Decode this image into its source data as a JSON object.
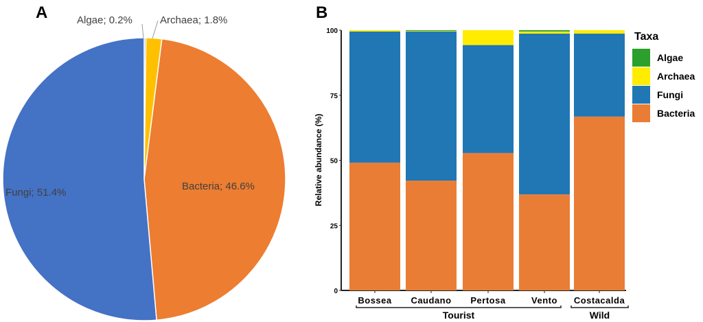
{
  "chart_data": [
    {
      "type": "pie",
      "panel_label": "A",
      "slices": [
        {
          "label": "Algae; 0.2%",
          "name": "Algae",
          "value": 0.2,
          "color": "#A5A5A5"
        },
        {
          "label": "Archaea; 1.8%",
          "name": "Archaea",
          "value": 1.8,
          "color": "#FFC000"
        },
        {
          "label": "Bacteria; 46.6%",
          "name": "Bacteria",
          "value": 46.6,
          "color": "#ED7D31"
        },
        {
          "label": "Fungi; 51.4%",
          "name": "Fungi",
          "value": 51.4,
          "color": "#4472C4"
        }
      ]
    },
    {
      "type": "bar",
      "stacked": true,
      "panel_label": "B",
      "categories": [
        "Bossea",
        "Caudano",
        "Pertosa",
        "Vento",
        "Costacalda"
      ],
      "groups": [
        {
          "label": "Tourist",
          "members": [
            "Bossea",
            "Caudano",
            "Pertosa",
            "Vento"
          ]
        },
        {
          "label": "Wild",
          "members": [
            "Costacalda"
          ]
        }
      ],
      "ylabel": "Relative abundance (%)",
      "xlabel": "",
      "ylim": [
        0,
        100
      ],
      "yticks": [
        "0",
        "25",
        "50",
        "75",
        "100"
      ],
      "legend": {
        "title": "Taxa",
        "position": "right"
      },
      "series": [
        {
          "name": "Bacteria",
          "color": "#E97D35",
          "values": [
            49.1,
            42.2,
            52.8,
            36.9,
            66.8
          ]
        },
        {
          "name": "Fungi",
          "color": "#2077B4",
          "values": [
            50.4,
            57.3,
            41.5,
            61.8,
            31.9
          ]
        },
        {
          "name": "Archaea",
          "color": "#FFEC00",
          "values": [
            0.5,
            0.2,
            5.7,
            0.8,
            1.3
          ]
        },
        {
          "name": "Algae",
          "color": "#2CA02C",
          "values": [
            0.0,
            0.3,
            0.0,
            0.5,
            0.0
          ]
        }
      ],
      "legend_order": [
        "Algae",
        "Archaea",
        "Fungi",
        "Bacteria"
      ]
    }
  ]
}
